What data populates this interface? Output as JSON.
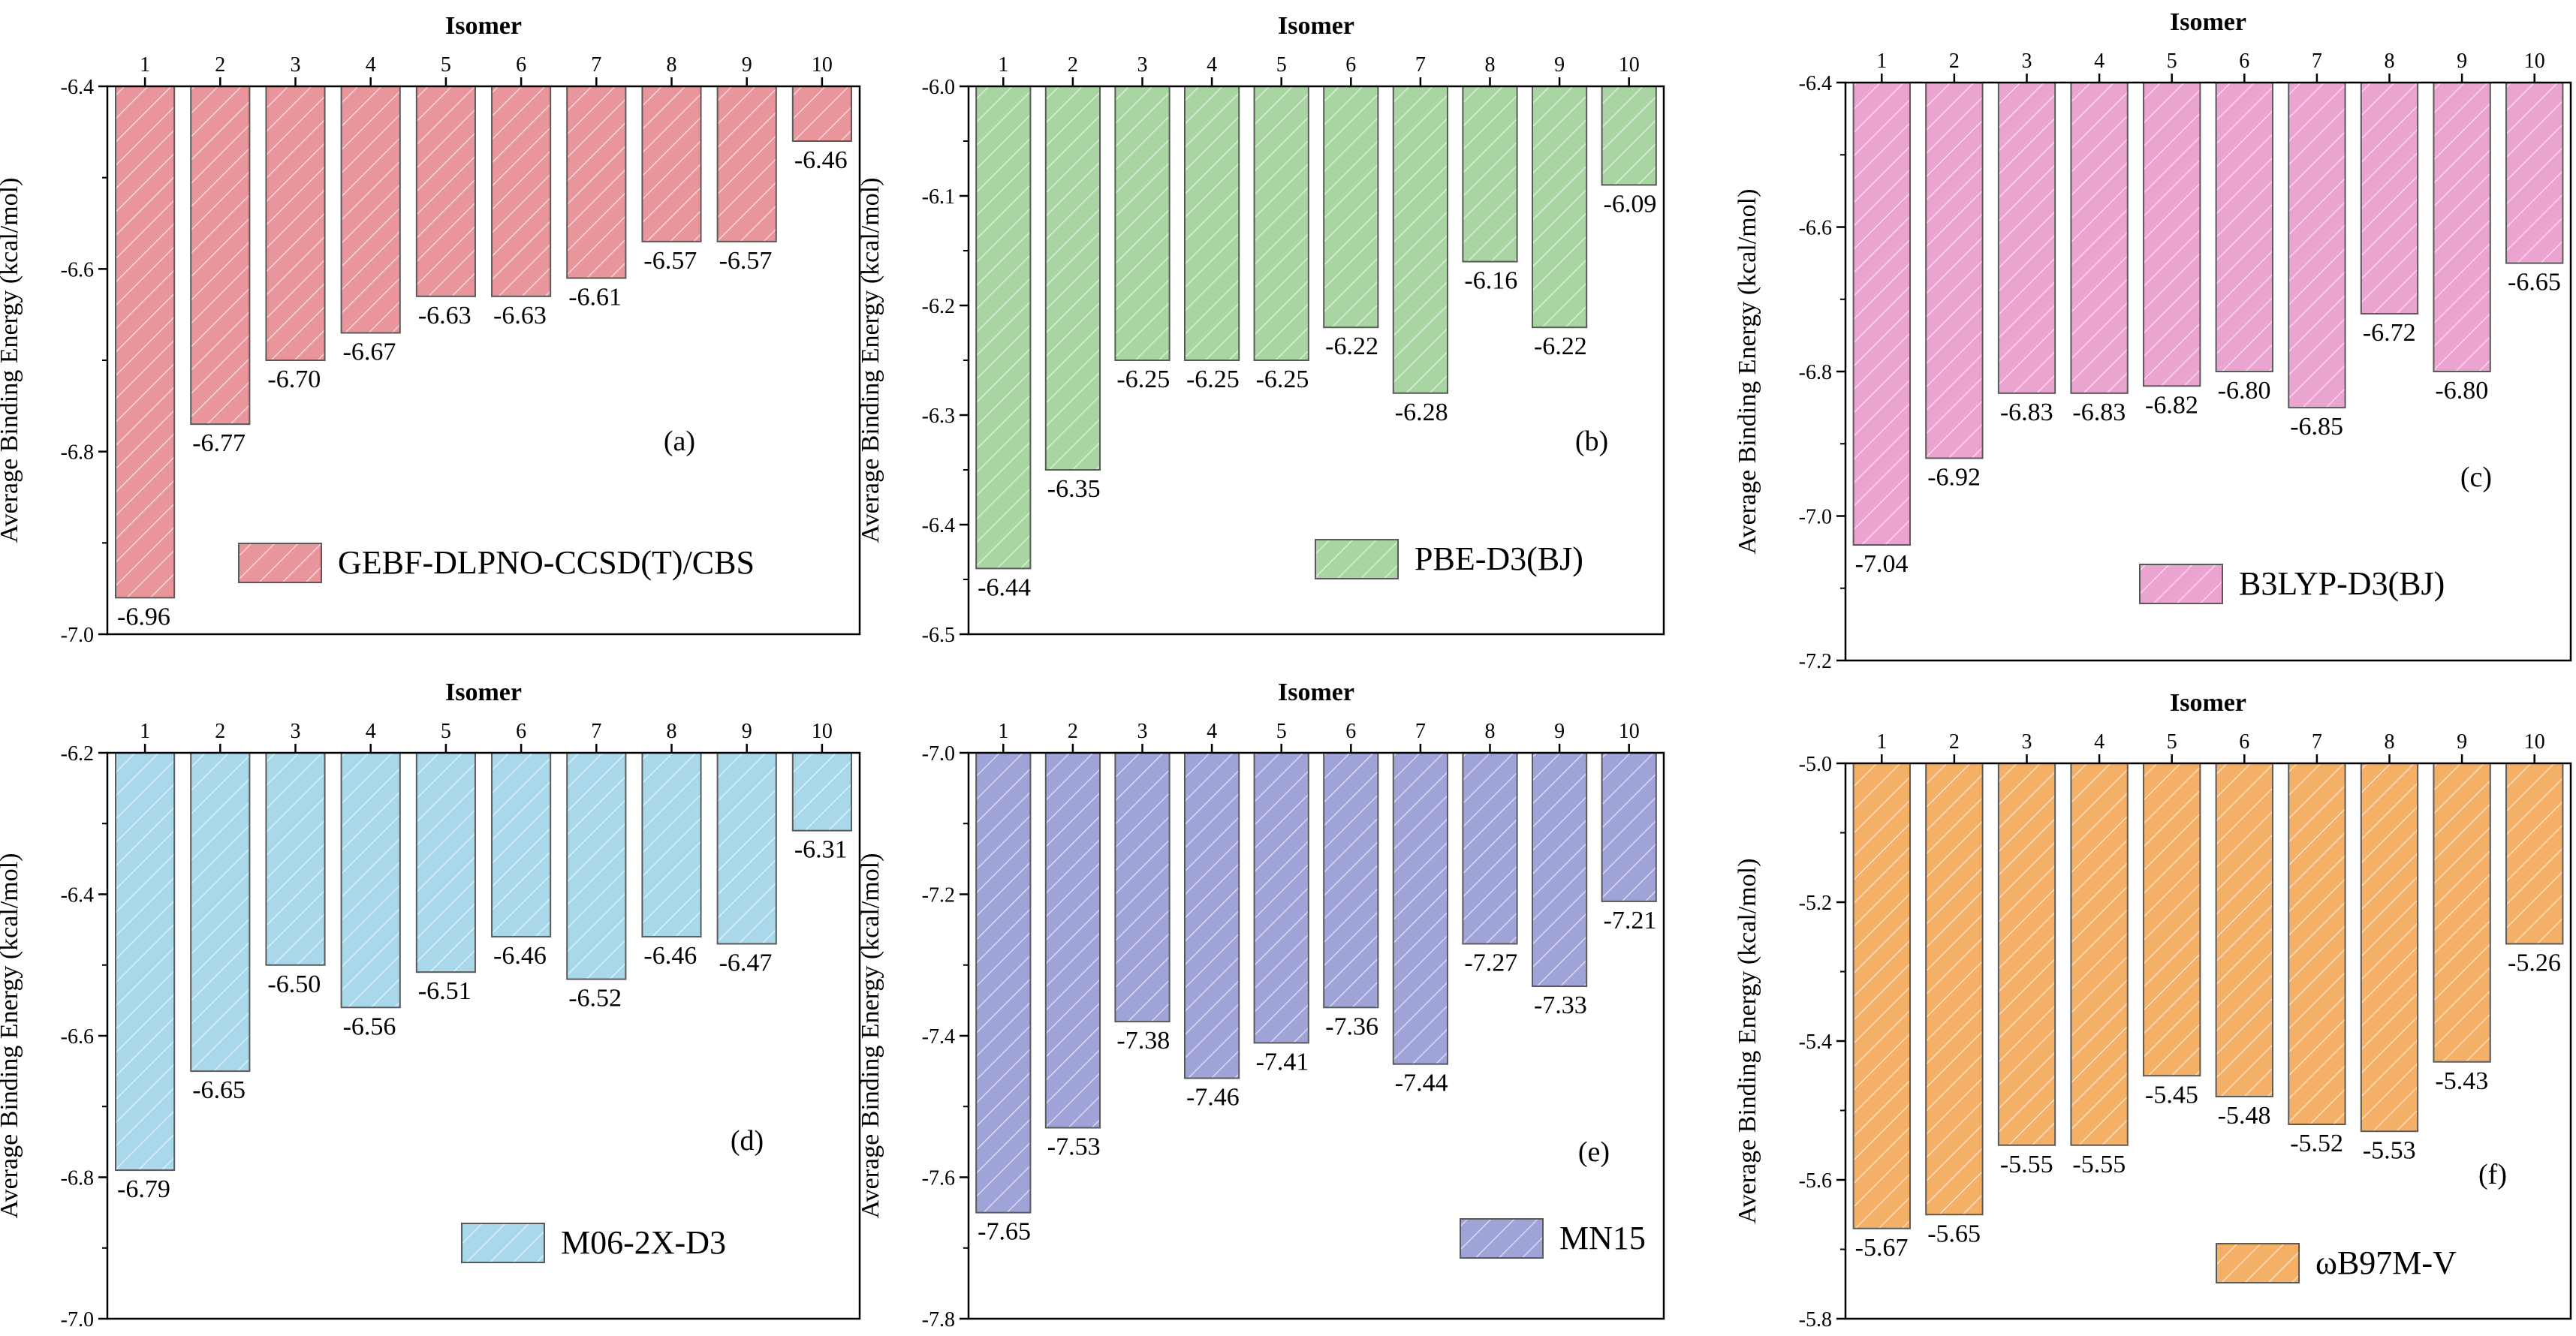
{
  "figure": {
    "shared_x_title": "Isomer",
    "shared_y_title": "Average Binding Energy (kcal/mol)"
  },
  "chart_data": [
    {
      "type": "bar",
      "panel_label": "(a)",
      "legend": "GEBF-DLPNO-CCSD(T)/CBS",
      "color": "#E8959B",
      "xlabel": "Isomer",
      "ylabel": "Average Binding Energy (kcal/mol)",
      "categories": [
        "1",
        "2",
        "3",
        "4",
        "5",
        "6",
        "7",
        "8",
        "9",
        "10"
      ],
      "values": [
        -6.96,
        -6.77,
        -6.7,
        -6.67,
        -6.63,
        -6.63,
        -6.61,
        -6.57,
        -6.57,
        -6.46
      ],
      "data_labels": [
        "-6.96",
        "-6.77",
        "-6.70",
        "-6.67",
        "-6.63",
        "-6.63",
        "-6.61",
        "-6.57",
        "-6.57",
        "-6.46"
      ],
      "ylim": [
        -7.0,
        -6.4
      ],
      "yticks": [
        -7.0,
        -6.8,
        -6.6,
        -6.4
      ],
      "ytick_labels": [
        "-7.0",
        "-6.8",
        "-6.6",
        "-6.4"
      ],
      "x_axis_position": "top",
      "grid": false,
      "legend_position": "bottom-right",
      "label_position": "right-middle"
    },
    {
      "type": "bar",
      "panel_label": "(b)",
      "legend": "PBE-D3(BJ)",
      "color": "#A8D5A2",
      "xlabel": "Isomer",
      "ylabel": "Average Binding Energy (kcal/mol)",
      "categories": [
        "1",
        "2",
        "3",
        "4",
        "5",
        "6",
        "7",
        "8",
        "9",
        "10"
      ],
      "values": [
        -6.44,
        -6.35,
        -6.25,
        -6.25,
        -6.25,
        -6.22,
        -6.28,
        -6.16,
        -6.22,
        -6.09
      ],
      "data_labels": [
        "-6.44",
        "-6.35",
        "-6.25",
        "-6.25",
        "-6.25",
        "-6.22",
        "-6.28",
        "-6.16",
        "-6.22",
        "-6.09"
      ],
      "ylim": [
        -6.5,
        -6.0
      ],
      "yticks": [
        -6.5,
        -6.4,
        -6.3,
        -6.2,
        -6.1,
        -6.0
      ],
      "ytick_labels": [
        "-6.5",
        "-6.4",
        "-6.3",
        "-6.2",
        "-6.1",
        "-6.0"
      ],
      "x_axis_position": "top",
      "grid": false,
      "legend_position": "bottom-right",
      "label_position": "right-middle"
    },
    {
      "type": "bar",
      "panel_label": "(c)",
      "legend": "B3LYP-D3(BJ)",
      "color": "#EBA3CF",
      "xlabel": "Isomer",
      "ylabel": "Average Binding Energy (kcal/mol)",
      "categories": [
        "1",
        "2",
        "3",
        "4",
        "5",
        "6",
        "7",
        "8",
        "9",
        "10"
      ],
      "values": [
        -7.04,
        -6.92,
        -6.83,
        -6.83,
        -6.82,
        -6.8,
        -6.85,
        -6.72,
        -6.8,
        -6.65
      ],
      "data_labels": [
        "-7.04",
        "-6.92",
        "-6.83",
        "-6.83",
        "-6.82",
        "-6.80",
        "-6.85",
        "-6.72",
        "-6.80",
        "-6.65"
      ],
      "ylim": [
        -7.2,
        -6.4
      ],
      "yticks": [
        -7.2,
        -7.0,
        -6.8,
        -6.6,
        -6.4
      ],
      "ytick_labels": [
        "-7.2",
        "-7.0",
        "-6.8",
        "-6.6",
        "-6.4"
      ],
      "x_axis_position": "top",
      "grid": false,
      "legend_position": "bottom-right",
      "label_position": "right-middle"
    },
    {
      "type": "bar",
      "panel_label": "(d)",
      "legend": "M06-2X-D3",
      "color": "#A9D8EB",
      "xlabel": "Isomer",
      "ylabel": "Average Binding Energy (kcal/mol)",
      "categories": [
        "1",
        "2",
        "3",
        "4",
        "5",
        "6",
        "7",
        "8",
        "9",
        "10"
      ],
      "values": [
        -6.79,
        -6.65,
        -6.5,
        -6.56,
        -6.51,
        -6.46,
        -6.52,
        -6.46,
        -6.47,
        -6.31
      ],
      "data_labels": [
        "-6.79",
        "-6.65",
        "-6.50",
        "-6.56",
        "-6.51",
        "-6.46",
        "-6.52",
        "-6.46",
        "-6.47",
        "-6.31"
      ],
      "ylim": [
        -7.0,
        -6.2
      ],
      "yticks": [
        -7.0,
        -6.8,
        -6.6,
        -6.4,
        -6.2
      ],
      "ytick_labels": [
        "-7.0",
        "-6.8",
        "-6.6",
        "-6.4",
        "-6.2"
      ],
      "x_axis_position": "top",
      "grid": false,
      "legend_position": "bottom-right",
      "label_position": "right-middle"
    },
    {
      "type": "bar",
      "panel_label": "(e)",
      "legend": "MN15",
      "color": "#9FA3D8",
      "xlabel": "Isomer",
      "ylabel": "Average Binding Energy (kcal/mol)",
      "categories": [
        "1",
        "2",
        "3",
        "4",
        "5",
        "6",
        "7",
        "8",
        "9",
        "10"
      ],
      "values": [
        -7.65,
        -7.53,
        -7.38,
        -7.46,
        -7.41,
        -7.36,
        -7.44,
        -7.27,
        -7.33,
        -7.21
      ],
      "data_labels": [
        "-7.65",
        "-7.53",
        "-7.38",
        "-7.46",
        "-7.41",
        "-7.36",
        "-7.44",
        "-7.27",
        "-7.33",
        "-7.21"
      ],
      "ylim": [
        -7.8,
        -7.0
      ],
      "yticks": [
        -7.8,
        -7.6,
        -7.4,
        -7.2,
        -7.0
      ],
      "ytick_labels": [
        "-7.8",
        "-7.6",
        "-7.4",
        "-7.2",
        "-7.0"
      ],
      "x_axis_position": "top",
      "grid": false,
      "legend_position": "bottom-right",
      "label_position": "right-middle"
    },
    {
      "type": "bar",
      "panel_label": "(f)",
      "legend": "ωB97M-V",
      "color": "#F4B066",
      "xlabel": "Isomer",
      "ylabel": "Average Binding Energy (kcal/mol)",
      "categories": [
        "1",
        "2",
        "3",
        "4",
        "5",
        "6",
        "7",
        "8",
        "9",
        "10"
      ],
      "values": [
        -5.67,
        -5.65,
        -5.55,
        -5.55,
        -5.45,
        -5.48,
        -5.52,
        -5.53,
        -5.43,
        -5.26
      ],
      "data_labels": [
        "-5.67",
        "-5.65",
        "-5.55",
        "-5.55",
        "-5.45",
        "-5.48",
        "-5.52",
        "-5.53",
        "-5.43",
        "-5.26"
      ],
      "ylim": [
        -5.8,
        -5.0
      ],
      "yticks": [
        -5.8,
        -5.6,
        -5.4,
        -5.2,
        -5.0
      ],
      "ytick_labels": [
        "-5.8",
        "-5.6",
        "-5.4",
        "-5.2",
        "-5.0"
      ],
      "x_axis_position": "top",
      "grid": false,
      "legend_position": "bottom-right",
      "label_position": "right-bottom"
    }
  ]
}
